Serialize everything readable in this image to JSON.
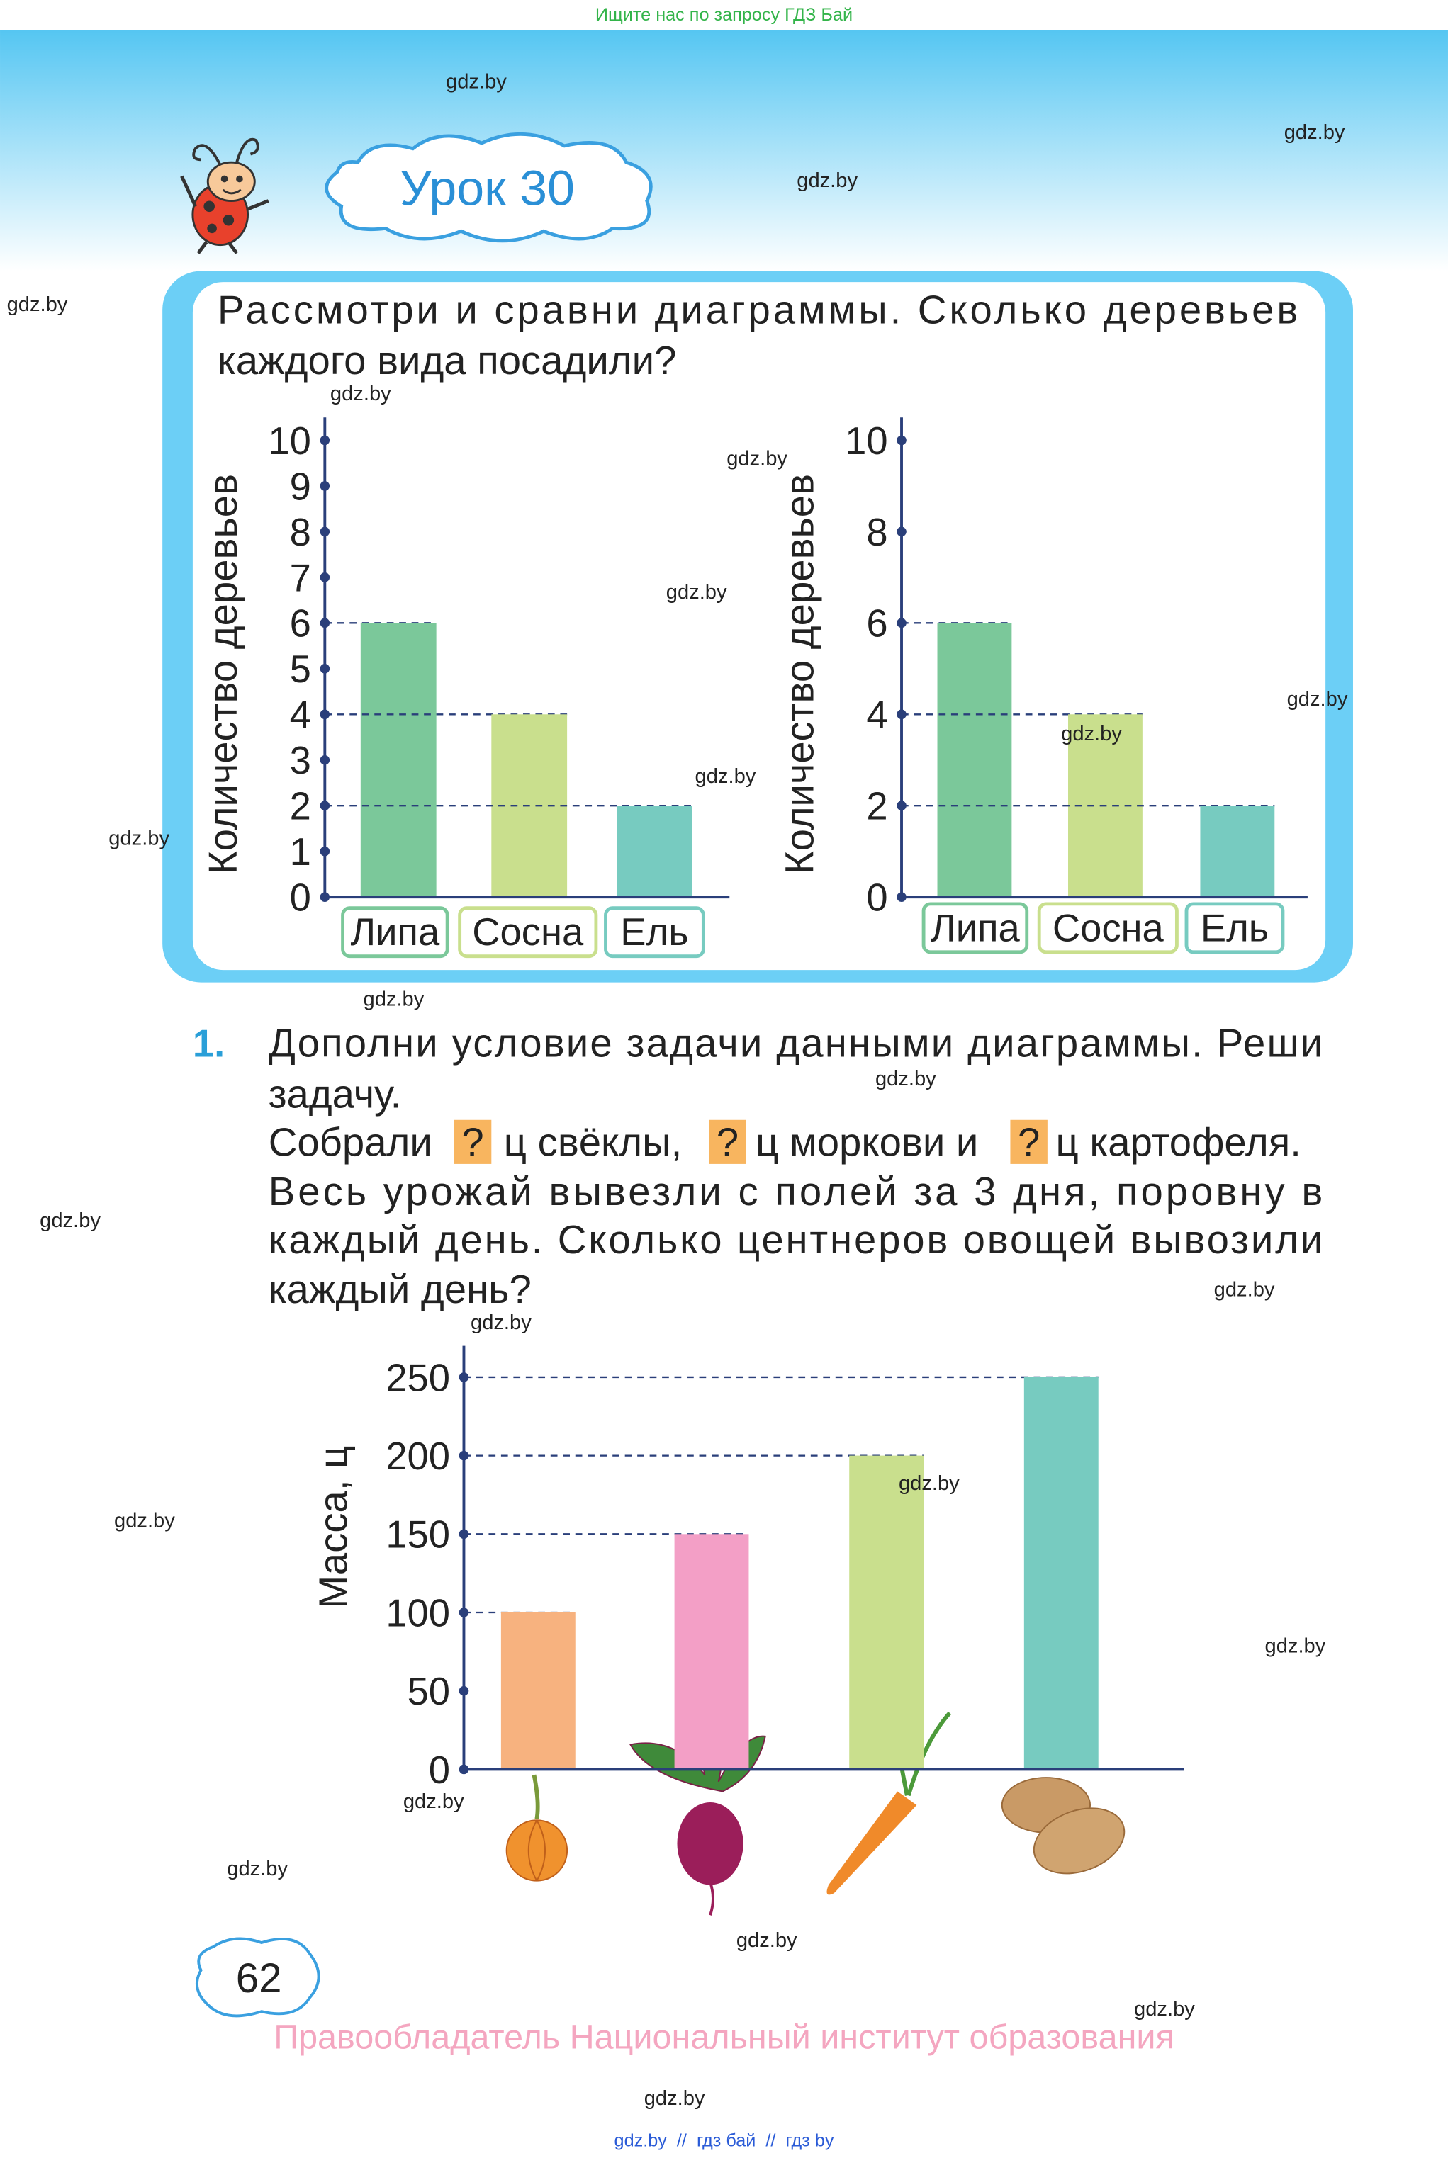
{
  "banner": "Ищите нас по запросу ГДЗ Бай",
  "watermarks": [
    "gdz.by",
    "gdz.by",
    "gdz.by",
    "gdz.by",
    "gdz.by",
    "gdz.by",
    "gdz.by",
    "gdz.by",
    "gdz.by",
    "gdz.by",
    "gdz.by",
    "gdz.by",
    "gdz.by",
    "gdz.by",
    "gdz.by",
    "gdz.by",
    "gdz.by",
    "gdz.by",
    "gdz.by",
    "gdz.by",
    "gdz.by",
    "gdz.by",
    "gdz.by",
    "gdz.by"
  ],
  "lesson": "Урок 30",
  "task": {
    "lines": [
      "Рассмотри и сравни диаграммы. Сколько деревьев",
      "каждого вида посадили?"
    ]
  },
  "chart_data": [
    {
      "type": "bar",
      "y_label": "Количество деревьев",
      "categories": [
        "Липа",
        "Сосна",
        "Ель"
      ],
      "values": [
        6,
        4,
        2
      ],
      "colors": [
        "#7bc89a",
        "#c9df8d",
        "#77cbc0"
      ],
      "ylim": [
        0,
        10.5
      ],
      "yticks": [
        0,
        1,
        2,
        3,
        4,
        5,
        6,
        7,
        8,
        9,
        10
      ],
      "dashed_guides": true
    },
    {
      "type": "bar",
      "y_label": "Количество деревьев",
      "categories": [
        "Липа",
        "Сосна",
        "Ель"
      ],
      "values": [
        6,
        4,
        2
      ],
      "colors": [
        "#7bc89a",
        "#c9df8d",
        "#77cbc0"
      ],
      "ylim": [
        0,
        10.5
      ],
      "yticks": [
        0,
        2,
        4,
        6,
        8,
        10
      ],
      "dashed_guides": true
    },
    {
      "type": "bar",
      "y_label": "Масса, ц",
      "categories": [
        null,
        null,
        null,
        null
      ],
      "values": [
        100,
        150,
        200,
        250
      ],
      "colors": [
        "#f7b27f",
        "#f39fc6",
        "#c9df8d",
        "#77cbc0"
      ],
      "ylim": [
        0,
        270
      ],
      "yticks": [
        0,
        50,
        100,
        150,
        200,
        250
      ],
      "dashed_guides": true
    }
  ],
  "exercise": {
    "number": "1.",
    "lines": [
      "Дополни условие задачи данными диаграммы. Реши",
      "задачу."
    ],
    "fill_line": [
      "Собрали",
      "?",
      "ц свёклы,",
      "?",
      "ц моркови и",
      "?",
      "ц картофеля."
    ],
    "lines_after": [
      "Весь урожай вывезли с полей за 3 дня, поровну в",
      "каждый день. Сколько центнеров овощей вывозили",
      "каждый день?"
    ]
  },
  "page_number": "62",
  "copyright": "Правообладатель Национальный институт образования",
  "footer": "gdz.by  //  гдз бай  //  гдз by"
}
